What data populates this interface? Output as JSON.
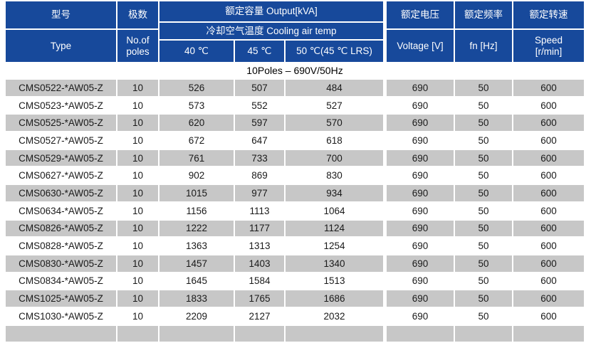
{
  "colors": {
    "header_blue": "#17499B",
    "row_gray": "#C7C7C7",
    "row_text": "#1A1A1A",
    "header_text": "#FFFFFF"
  },
  "table": {
    "header": {
      "type": {
        "zh": "型号",
        "en": "Type"
      },
      "poles": {
        "zh": "极数",
        "en": "No.of\npoles"
      },
      "output": {
        "title": "额定容量 Output[kVA]",
        "subtitle": "冷却空气温度 Cooling air temp",
        "temps": [
          "40 ℃",
          "45 ℃",
          "50 ℃(45 ℃ LRS)"
        ]
      },
      "voltage": {
        "zh": "额定电压",
        "en": "Voltage [V]"
      },
      "frequency": {
        "zh": "额定频率",
        "en": "fn [Hz]"
      },
      "speed": {
        "zh": "额定转速",
        "en": "Speed\n[r/min]"
      }
    },
    "section_banner": "10Poles – 690V/50Hz",
    "rows": [
      {
        "model": "CMS0522-*AW05-Z",
        "poles": "10",
        "kva_40c": "526",
        "kva_45c": "507",
        "kva_50c_lrs": "484",
        "voltage_v": "690",
        "fn_hz": "50",
        "speed_rpm": "600"
      },
      {
        "model": "CMS0523-*AW05-Z",
        "poles": "10",
        "kva_40c": "573",
        "kva_45c": "552",
        "kva_50c_lrs": "527",
        "voltage_v": "690",
        "fn_hz": "50",
        "speed_rpm": "600"
      },
      {
        "model": "CMS0525-*AW05-Z",
        "poles": "10",
        "kva_40c": "620",
        "kva_45c": "597",
        "kva_50c_lrs": "570",
        "voltage_v": "690",
        "fn_hz": "50",
        "speed_rpm": "600"
      },
      {
        "model": "CMS0527-*AW05-Z",
        "poles": "10",
        "kva_40c": "672",
        "kva_45c": "647",
        "kva_50c_lrs": "618",
        "voltage_v": "690",
        "fn_hz": "50",
        "speed_rpm": "600"
      },
      {
        "model": "CMS0529-*AW05-Z",
        "poles": "10",
        "kva_40c": "761",
        "kva_45c": "733",
        "kva_50c_lrs": "700",
        "voltage_v": "690",
        "fn_hz": "50",
        "speed_rpm": "600"
      },
      {
        "model": "CMS0627-*AW05-Z",
        "poles": "10",
        "kva_40c": "902",
        "kva_45c": "869",
        "kva_50c_lrs": "830",
        "voltage_v": "690",
        "fn_hz": "50",
        "speed_rpm": "600"
      },
      {
        "model": "CMS0630-*AW05-Z",
        "poles": "10",
        "kva_40c": "1015",
        "kva_45c": "977",
        "kva_50c_lrs": "934",
        "voltage_v": "690",
        "fn_hz": "50",
        "speed_rpm": "600"
      },
      {
        "model": "CMS0634-*AW05-Z",
        "poles": "10",
        "kva_40c": "1156",
        "kva_45c": "1113",
        "kva_50c_lrs": "1064",
        "voltage_v": "690",
        "fn_hz": "50",
        "speed_rpm": "600"
      },
      {
        "model": "CMS0826-*AW05-Z",
        "poles": "10",
        "kva_40c": "1222",
        "kva_45c": "1177",
        "kva_50c_lrs": "1124",
        "voltage_v": "690",
        "fn_hz": "50",
        "speed_rpm": "600"
      },
      {
        "model": "CMS0828-*AW05-Z",
        "poles": "10",
        "kva_40c": "1363",
        "kva_45c": "1313",
        "kva_50c_lrs": "1254",
        "voltage_v": "690",
        "fn_hz": "50",
        "speed_rpm": "600"
      },
      {
        "model": "CMS0830-*AW05-Z",
        "poles": "10",
        "kva_40c": "1457",
        "kva_45c": "1403",
        "kva_50c_lrs": "1340",
        "voltage_v": "690",
        "fn_hz": "50",
        "speed_rpm": "600"
      },
      {
        "model": "CMS0834-*AW05-Z",
        "poles": "10",
        "kva_40c": "1645",
        "kva_45c": "1584",
        "kva_50c_lrs": "1513",
        "voltage_v": "690",
        "fn_hz": "50",
        "speed_rpm": "600"
      },
      {
        "model": "CMS1025-*AW05-Z",
        "poles": "10",
        "kva_40c": "1833",
        "kva_45c": "1765",
        "kva_50c_lrs": "1686",
        "voltage_v": "690",
        "fn_hz": "50",
        "speed_rpm": "600"
      },
      {
        "model": "CMS1030-*AW05-Z",
        "poles": "10",
        "kva_40c": "2209",
        "kva_45c": "2127",
        "kva_50c_lrs": "2032",
        "voltage_v": "690",
        "fn_hz": "50",
        "speed_rpm": "600"
      }
    ]
  }
}
